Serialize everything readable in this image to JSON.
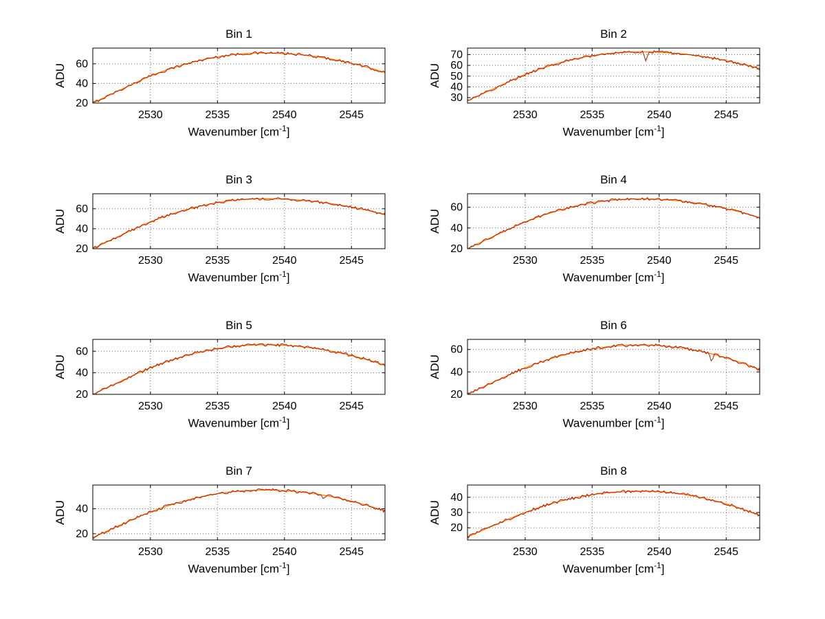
{
  "figure": {
    "background": "#ffffff",
    "n_subplots": 8
  },
  "chart_data": {
    "type": "line",
    "layout": {
      "rows": 4,
      "cols": 2,
      "grid": true,
      "grid_style": "dotted",
      "legend": "none"
    },
    "xlabel": "Wavenumber [cm⁻¹]",
    "xlabel_base": "Wavenumber [cm",
    "xlabel_sup": "-1",
    "xlabel_close": "]",
    "ylabel": "ADU",
    "xlim": [
      2525.7,
      2547.5
    ],
    "x_ticks": [
      2530,
      2535,
      2540,
      2545
    ],
    "colors": {
      "data": "#b41400",
      "fit": "#ff8800",
      "grid": "#666666",
      "axis": "#000000",
      "text": "#000000",
      "background": "#ffffff"
    },
    "x_anchors": [
      2525.7,
      2528,
      2530,
      2532,
      2534,
      2536,
      2538,
      2540,
      2542,
      2544,
      2546,
      2547.5
    ],
    "subplots": [
      {
        "title": "Bin 1",
        "ylim": [
          20,
          76
        ],
        "y_ticks": [
          20,
          40,
          60
        ],
        "values": [
          20,
          35,
          47.5,
          57.2,
          64.4,
          69,
          70.9,
          70.4,
          68,
          63.5,
          57.1,
          51
        ],
        "spikes": []
      },
      {
        "title": "Bin 2",
        "ylim": [
          25,
          76
        ],
        "y_ticks": [
          30,
          40,
          50,
          60,
          70
        ],
        "values": [
          27,
          40.4,
          51.5,
          60.2,
          66.6,
          70.7,
          72.4,
          72.1,
          70.2,
          66.7,
          61.7,
          57
        ],
        "spikes": [
          {
            "x": 2539.0,
            "depth": 9
          }
        ]
      },
      {
        "title": "Bin 3",
        "ylim": [
          20,
          75
        ],
        "y_ticks": [
          20,
          40,
          60
        ],
        "values": [
          20,
          34.7,
          46.9,
          56.5,
          63.5,
          68,
          69.9,
          69.6,
          67.6,
          64,
          58.9,
          54
        ],
        "spikes": []
      },
      {
        "title": "Bin 4",
        "ylim": [
          20,
          73
        ],
        "y_ticks": [
          20,
          40,
          60
        ],
        "values": [
          20,
          34.1,
          45.8,
          55,
          61.8,
          66.1,
          67.9,
          67.5,
          65.3,
          61.3,
          55.5,
          50
        ],
        "spikes": []
      },
      {
        "title": "Bin 5",
        "ylim": [
          20,
          71
        ],
        "y_ticks": [
          20,
          40,
          60
        ],
        "values": [
          20,
          33.5,
          44.7,
          53.6,
          60,
          64.2,
          65.9,
          65.5,
          63.1,
          58.9,
          52.8,
          47
        ],
        "spikes": []
      },
      {
        "title": "Bin 6",
        "ylim": [
          20,
          69
        ],
        "y_ticks": [
          20,
          40,
          60
        ],
        "values": [
          20,
          33,
          43.7,
          52.1,
          58.3,
          62.2,
          63.9,
          63.4,
          60.7,
          55.8,
          48.7,
          42
        ],
        "spikes": [
          {
            "x": 2543.9,
            "depth": 6
          }
        ]
      },
      {
        "title": "Bin 7",
        "ylim": [
          15,
          59
        ],
        "y_ticks": [
          20,
          40
        ],
        "values": [
          17,
          28.2,
          37.4,
          44.7,
          50.1,
          53.5,
          54.9,
          54.5,
          52.4,
          48.6,
          43.2,
          38
        ],
        "spikes": [
          {
            "x": 2542.9,
            "depth": 4
          }
        ]
      },
      {
        "title": "Bin 8",
        "ylim": [
          12,
          48
        ],
        "y_ticks": [
          20,
          30,
          40
        ],
        "values": [
          14,
          22.8,
          30.1,
          35.9,
          40.1,
          42.8,
          43.9,
          43.6,
          41.6,
          38,
          32.9,
          28
        ],
        "spikes": []
      }
    ]
  }
}
